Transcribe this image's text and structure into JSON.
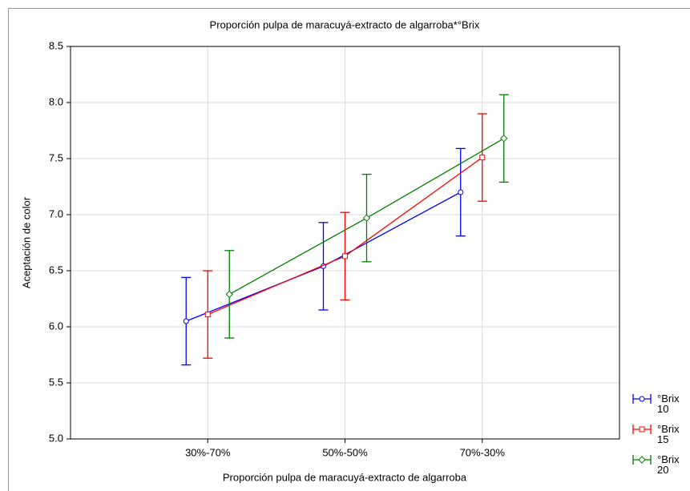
{
  "chart_data": {
    "type": "line",
    "title": "Proporción pulpa de maracuyá-extracto de algarroba*°Brix",
    "xlabel": "Proporción pulpa de maracuyá-extracto de algarroba",
    "ylabel": "Aceptación de color",
    "categories": [
      "30%-70%",
      "50%-50%",
      "70%-30%"
    ],
    "series": [
      {
        "name": "°Brix 10",
        "color": "#0000ff",
        "marker": "circle",
        "values": [
          6.05,
          6.54,
          7.2
        ],
        "errors": [
          0.39,
          0.39,
          0.39
        ]
      },
      {
        "name": "°Brix 15",
        "color": "#ff0000",
        "marker": "square",
        "values": [
          6.11,
          6.63,
          7.51
        ],
        "errors": [
          0.39,
          0.39,
          0.39
        ]
      },
      {
        "name": "°Brix 20",
        "color": "#008000",
        "marker": "diamond",
        "values": [
          6.29,
          6.97,
          7.68
        ],
        "errors": [
          0.39,
          0.39,
          0.39
        ]
      }
    ],
    "ylim": [
      5,
      8.5
    ],
    "yticks": [
      {
        "value": 5,
        "label": "5.0"
      },
      5.5,
      {
        "value": 6,
        "label": "6.0"
      },
      6.5,
      {
        "value": 7,
        "label": "7.0"
      },
      7.5,
      {
        "value": 8,
        "label": "8.0"
      },
      8.5
    ],
    "grid": true
  }
}
